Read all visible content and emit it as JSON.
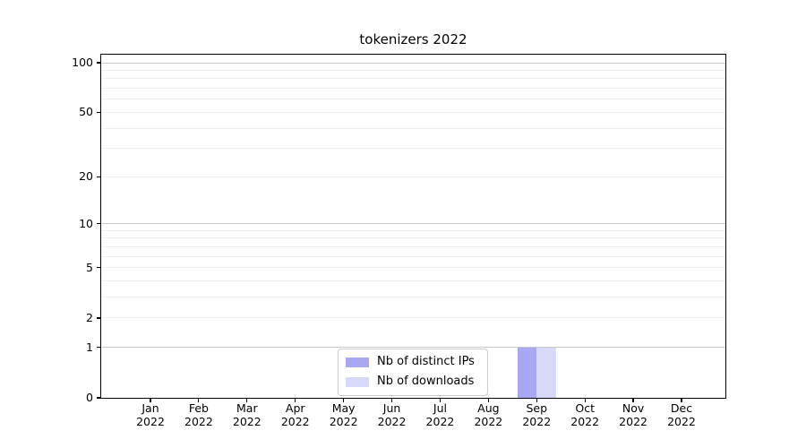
{
  "chart_data": {
    "type": "bar",
    "title": "tokenizers 2022",
    "categories": [
      "Jan",
      "Feb",
      "Mar",
      "Apr",
      "May",
      "Jun",
      "Jul",
      "Aug",
      "Sep",
      "Oct",
      "Nov",
      "Dec"
    ],
    "category_year": "2022",
    "series": [
      {
        "name": "Nb of distinct IPs",
        "color": "#a7a7f2",
        "values": [
          0,
          0,
          0,
          0,
          0,
          0,
          0,
          0,
          1,
          0,
          0,
          0
        ]
      },
      {
        "name": "Nb of downloads",
        "color": "#d8d8f8",
        "values": [
          0,
          0,
          0,
          0,
          0,
          0,
          0,
          0,
          1,
          0,
          0,
          0
        ]
      }
    ],
    "xlabel": "",
    "ylabel": "",
    "yscale": "log1p",
    "ylim": [
      0,
      112
    ],
    "y_ticks": [
      100,
      50,
      20,
      10,
      5,
      2,
      1,
      0
    ],
    "grid": {
      "major_values": [
        1,
        10,
        100
      ],
      "minor_values": [
        2,
        3,
        4,
        5,
        6,
        7,
        8,
        9,
        20,
        30,
        40,
        50,
        60,
        70,
        80,
        90
      ],
      "major_color": "#c9c9c9",
      "minor_color": "#ededed"
    },
    "legend_position": "lower center, inside plot"
  }
}
